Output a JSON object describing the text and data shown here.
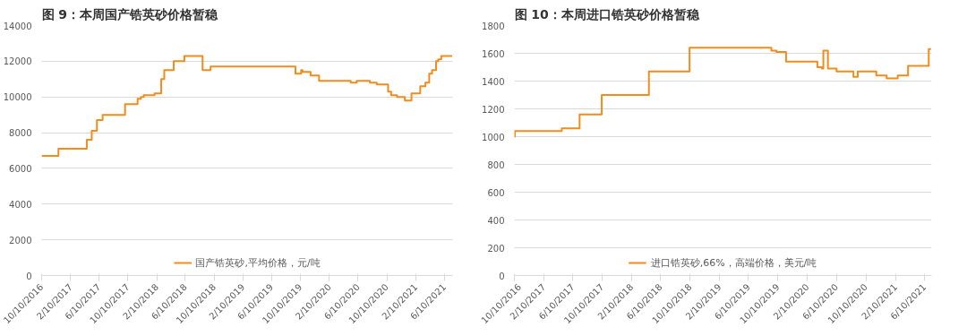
{
  "chart_data": [
    {
      "type": "step",
      "title": "图 9：本周国产锆英砂价格暂稳",
      "x": [
        "2016-10-10",
        "2016-12-20",
        "2017-04-19",
        "2017-05-10",
        "2017-06-01",
        "2017-06-25",
        "2017-09-28",
        "2017-11-20",
        "2017-12-04",
        "2017-12-16",
        "2018-01-31",
        "2018-02-28",
        "2018-03-13",
        "2018-04-22",
        "2018-06-06",
        "2018-08-22",
        "2018-09-25",
        "2019-09-19",
        "2019-10-13",
        "2019-10-19",
        "2019-11-22",
        "2019-12-28",
        "2020-05-10",
        "2020-06-04",
        "2020-07-30",
        "2020-08-28",
        "2020-10-15",
        "2020-10-28",
        "2020-11-22",
        "2020-12-25",
        "2021-01-22",
        "2021-02-28",
        "2021-03-22",
        "2021-04-07",
        "2021-04-19",
        "2021-05-06",
        "2021-05-15",
        "2021-05-28",
        "2021-07-13"
      ],
      "series": [
        {
          "name": "国产锆英砂,平均价格，元/吨",
          "color": "#f28c1c",
          "values": [
            6700,
            7100,
            7600,
            8100,
            8700,
            9000,
            9600,
            9900,
            10000,
            10100,
            10200,
            11000,
            11500,
            12000,
            12300,
            11500,
            11700,
            11300,
            11500,
            11400,
            11200,
            10900,
            10800,
            10900,
            10800,
            10700,
            10300,
            10100,
            10000,
            9800,
            10200,
            10600,
            10800,
            11300,
            11500,
            12000,
            12100,
            12300,
            12300
          ]
        }
      ],
      "xlim": [
        "2016-10-10",
        "2021-07-15"
      ],
      "xticks": [
        {
          "value": "2016-10-10",
          "label": "10/10/2016"
        },
        {
          "value": "2017-02-10",
          "label": "2/10/2017"
        },
        {
          "value": "2017-06-10",
          "label": "6/10/2017"
        },
        {
          "value": "2017-10-10",
          "label": "10/10/2017"
        },
        {
          "value": "2018-02-10",
          "label": "2/10/2018"
        },
        {
          "value": "2018-06-10",
          "label": "6/10/2018"
        },
        {
          "value": "2018-10-10",
          "label": "10/10/2018"
        },
        {
          "value": "2019-02-10",
          "label": "2/10/2019"
        },
        {
          "value": "2019-06-10",
          "label": "6/10/2019"
        },
        {
          "value": "2019-10-10",
          "label": "10/10/2019"
        },
        {
          "value": "2020-02-10",
          "label": "2/10/2020"
        },
        {
          "value": "2020-06-10",
          "label": "6/10/2020"
        },
        {
          "value": "2020-10-10",
          "label": "10/10/2020"
        },
        {
          "value": "2021-02-10",
          "label": "2/10/2021"
        },
        {
          "value": "2021-06-10",
          "label": "6/10/2021"
        }
      ],
      "ylim": [
        0,
        14000
      ],
      "yticks": [
        0,
        2000,
        4000,
        6000,
        8000,
        10000,
        12000,
        14000
      ],
      "grid": "y",
      "legend": "bottom"
    },
    {
      "type": "step",
      "title": "图 10：本周进口锆英砂价格暂稳",
      "x": [
        "2016-10-10",
        "2016-10-12",
        "2017-04-25",
        "2017-07-08",
        "2017-10-08",
        "2018-04-22",
        "2018-10-08",
        "2019-09-13",
        "2019-10-04",
        "2019-11-13",
        "2020-03-22",
        "2020-04-10",
        "2020-04-16",
        "2020-05-05",
        "2020-06-10",
        "2020-08-19",
        "2020-09-06",
        "2020-11-22",
        "2021-01-04",
        "2021-02-19",
        "2021-04-03",
        "2021-06-28",
        "2021-07-07"
      ],
      "series": [
        {
          "name": "进口锆英砂,66%，高端价格，美元/吨",
          "color": "#f28c1c",
          "values": [
            1000,
            1040,
            1060,
            1160,
            1300,
            1470,
            1640,
            1620,
            1610,
            1540,
            1500,
            1490,
            1620,
            1490,
            1470,
            1430,
            1470,
            1440,
            1420,
            1440,
            1510,
            1630,
            1630
          ]
        }
      ],
      "xlim": [
        "2016-10-10",
        "2021-07-10"
      ],
      "xticks": [
        {
          "value": "2016-10-10",
          "label": "10/10/2016"
        },
        {
          "value": "2017-02-10",
          "label": "2/10/2017"
        },
        {
          "value": "2017-06-10",
          "label": "6/10/2017"
        },
        {
          "value": "2017-10-10",
          "label": "10/10/2017"
        },
        {
          "value": "2018-02-10",
          "label": "2/10/2018"
        },
        {
          "value": "2018-06-10",
          "label": "6/10/2018"
        },
        {
          "value": "2018-10-10",
          "label": "10/10/2018"
        },
        {
          "value": "2019-02-10",
          "label": "2/10/2019"
        },
        {
          "value": "2019-06-10",
          "label": "6/10/2019"
        },
        {
          "value": "2019-10-10",
          "label": "10/10/2019"
        },
        {
          "value": "2020-02-10",
          "label": "2/10/2020"
        },
        {
          "value": "2020-06-10",
          "label": "6/10/2020"
        },
        {
          "value": "2020-10-10",
          "label": "10/10/2020"
        },
        {
          "value": "2021-02-10",
          "label": "2/10/2021"
        },
        {
          "value": "2021-06-10",
          "label": "6/10/2021"
        }
      ],
      "ylim": [
        0,
        1800
      ],
      "yticks": [
        0,
        200,
        400,
        600,
        800,
        1000,
        1200,
        1400,
        1600,
        1800
      ],
      "grid": "y",
      "legend": "bottom"
    }
  ]
}
